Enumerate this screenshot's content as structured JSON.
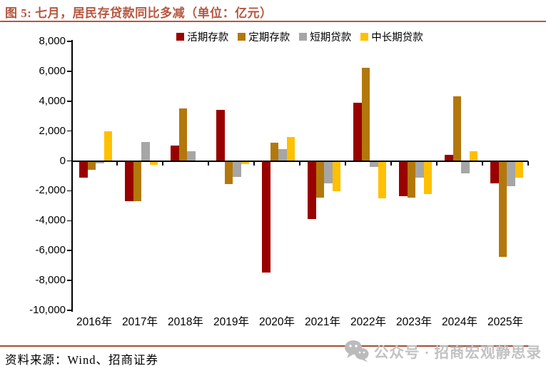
{
  "title": "图 5: 七月，居民存贷款同比多减（单位：亿元）",
  "footer": {
    "source": "资料来源：Wind、招商证券",
    "watermark": "公众号 · 招商宏观静思录"
  },
  "colors": {
    "title": "#B5573F",
    "title_rule": "#B5573F",
    "footer_rule": "#A34E30",
    "watermark": "#C2C2C2",
    "watermark_icon": "#BBBBBB",
    "axis": "#000000"
  },
  "chart_data": {
    "type": "bar",
    "title": "七月，居民存贷款同比多减",
    "unit": "亿元",
    "categories": [
      "2016年",
      "2017年",
      "2018年",
      "2019年",
      "2020年",
      "2021年",
      "2022年",
      "2023年",
      "2024年",
      "2025年"
    ],
    "series": [
      {
        "name": "活期存款",
        "color": "#990000",
        "values": [
          -1100,
          -2700,
          1050,
          3400,
          -7450,
          -3900,
          3900,
          -2350,
          400,
          -1500
        ]
      },
      {
        "name": "定期存款",
        "color": "#B3780B",
        "values": [
          -580,
          -2700,
          3500,
          -1550,
          1200,
          -2450,
          6250,
          -2450,
          4300,
          -6400
        ]
      },
      {
        "name": "短期贷款",
        "color": "#A6A6A6",
        "values": [
          -150,
          1250,
          650,
          -1050,
          800,
          -1500,
          -420,
          -1100,
          -850,
          -1700
        ]
      },
      {
        "name": "中长期贷款",
        "color": "#FFC000",
        "values": [
          2000,
          -250,
          0,
          -200,
          1600,
          -2050,
          -2500,
          -2200,
          650,
          -1100
        ]
      }
    ],
    "ylim": [
      -10000,
      8000
    ],
    "ytick_step": 2000,
    "grid": false,
    "legend_position": "top"
  }
}
